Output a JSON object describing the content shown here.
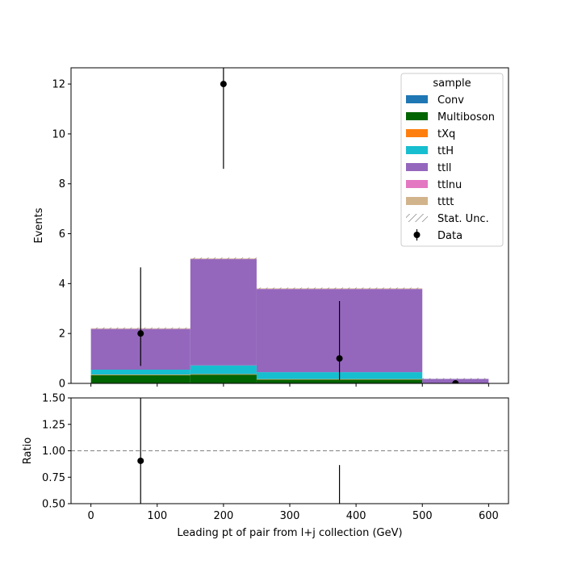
{
  "chart_data": {
    "type": "bar",
    "stacked": true,
    "x_bin_edges": [
      0,
      150,
      250,
      500,
      600
    ],
    "xlim": [
      -30,
      630
    ],
    "xticks": [
      0,
      100,
      200,
      300,
      400,
      500,
      600
    ],
    "xlabel": "Leading pt of pair from l+j collection (GeV)",
    "main_panel": {
      "ylabel": "Events",
      "ylim": [
        0,
        12.65
      ],
      "yticks": [
        0,
        2,
        4,
        6,
        8,
        10,
        12
      ],
      "series": [
        {
          "name": "Conv",
          "color": "#1f77b4",
          "values": [
            0.0,
            0.0,
            0.0,
            0.0
          ]
        },
        {
          "name": "Multiboson",
          "color": "#006400",
          "values": [
            0.33,
            0.35,
            0.15,
            0.0
          ]
        },
        {
          "name": "tXq",
          "color": "#ff7f0e",
          "values": [
            0.02,
            0.02,
            0.02,
            0.0
          ]
        },
        {
          "name": "ttH",
          "color": "#17becf",
          "values": [
            0.2,
            0.35,
            0.28,
            0.0
          ]
        },
        {
          "name": "ttll",
          "color": "#9467bd",
          "values": [
            1.63,
            4.26,
            3.33,
            0.18
          ]
        },
        {
          "name": "ttlnu",
          "color": "#e377c2",
          "values": [
            0.01,
            0.01,
            0.01,
            0.0
          ]
        },
        {
          "name": "tttt",
          "color": "#d2b48c",
          "values": [
            0.02,
            0.02,
            0.02,
            0.0
          ]
        }
      ],
      "data": {
        "name": "Data",
        "points": [
          {
            "x": 75,
            "y": 2,
            "ylow": 0.7,
            "yhigh": 4.65
          },
          {
            "x": 200,
            "y": 12,
            "ylow": 8.6,
            "yhigh": 12.65
          },
          {
            "x": 375,
            "y": 1,
            "ylow": 0.15,
            "yhigh": 3.3
          },
          {
            "x": 550,
            "y": 0,
            "ylow": 0,
            "yhigh": 0
          }
        ]
      },
      "legend": {
        "title": "sample",
        "position": "upper right",
        "entries": [
          "Conv",
          "Multiboson",
          "tXq",
          "ttH",
          "ttll",
          "ttlnu",
          "tttt",
          "Stat. Unc.",
          "Data"
        ]
      }
    },
    "ratio_panel": {
      "ylabel": "Ratio",
      "ylim": [
        0.5,
        1.5
      ],
      "yticks": [
        "0.50",
        "0.75",
        "1.00",
        "1.25",
        "1.50"
      ],
      "reference_line": 1.0,
      "points": [
        {
          "x": 75,
          "y": 0.905,
          "ylow": 0.5,
          "yhigh": 1.5
        },
        {
          "x": 375,
          "y": null,
          "ylow": 0.5,
          "yhigh": 0.865
        }
      ]
    }
  }
}
